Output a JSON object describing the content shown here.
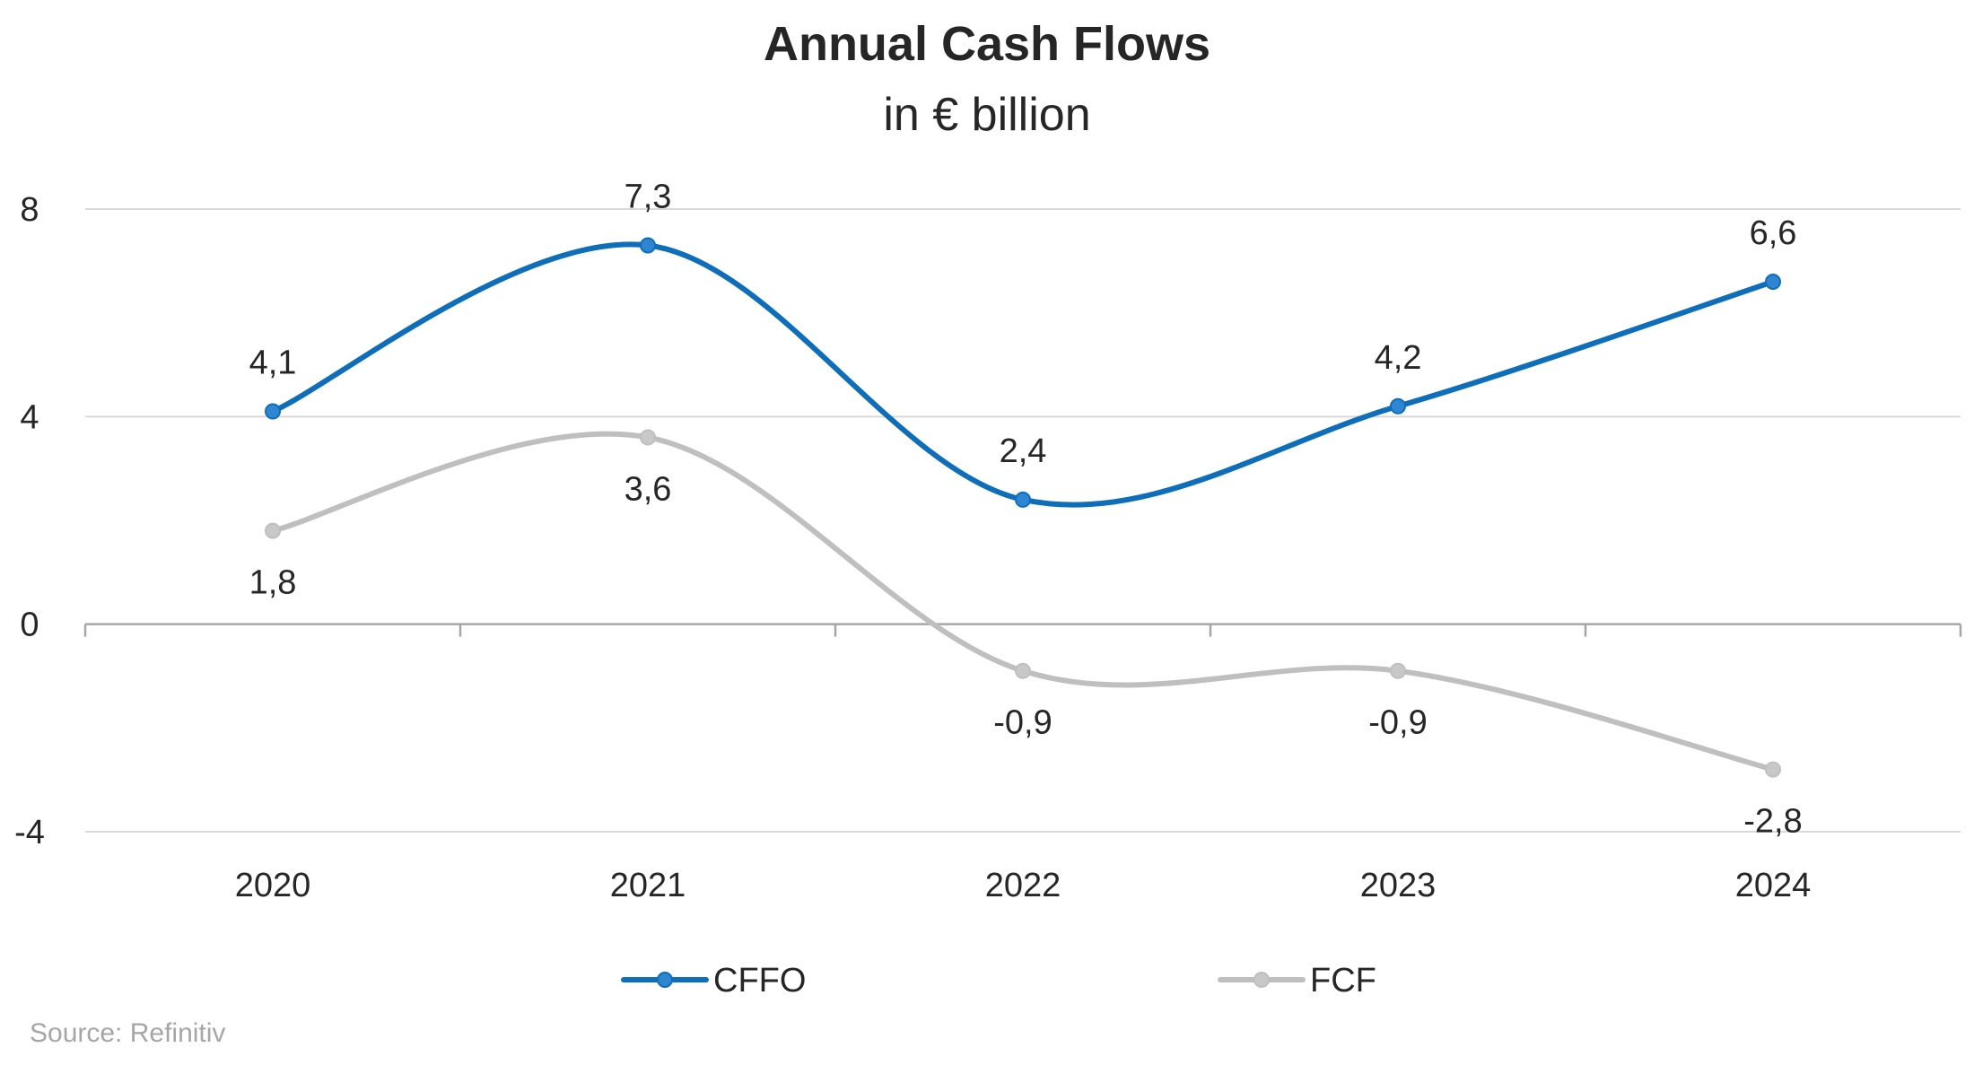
{
  "chart_data": {
    "type": "line",
    "title": "Annual Cash Flows",
    "subtitle": "in € billion",
    "xlabel": "",
    "ylabel": "",
    "categories": [
      "2020",
      "2021",
      "2022",
      "2023",
      "2024"
    ],
    "ylim": [
      -4,
      8
    ],
    "yticks": [
      -4,
      0,
      4,
      8
    ],
    "ytick_labels": [
      "-4",
      "0",
      "4",
      "8"
    ],
    "grid": true,
    "smooth": true,
    "legend_position": "bottom",
    "series": [
      {
        "name": "CFFO",
        "values": [
          4.1,
          7.3,
          2.4,
          4.2,
          6.6
        ],
        "labels": [
          "4,1",
          "7,3",
          "2,4",
          "4,2",
          "6,6"
        ],
        "label_position": "above",
        "color": "#0E6EBA",
        "marker_color": "#2E86D1"
      },
      {
        "name": "FCF",
        "values": [
          1.8,
          3.6,
          -0.9,
          -0.9,
          -2.8
        ],
        "labels": [
          "1,8",
          "3,6",
          "-0,9",
          "-0,9",
          "-2,8"
        ],
        "label_position": "below",
        "color": "#BFBFBF",
        "marker_color": "#C8C8C8"
      }
    ],
    "source": "Source: Refinitiv"
  }
}
